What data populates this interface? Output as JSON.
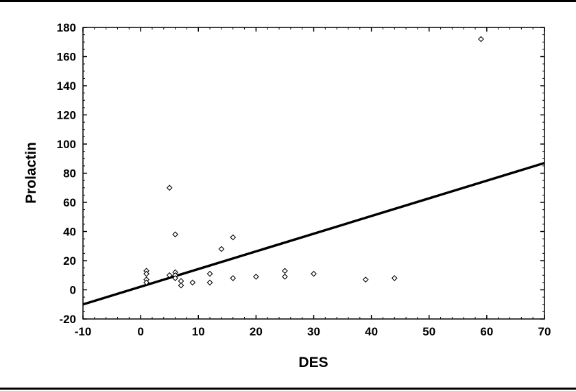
{
  "chart_data": {
    "type": "scatter",
    "title": "",
    "xlabel": "DES",
    "ylabel": "Prolactin",
    "xlim": [
      -10,
      70
    ],
    "ylim": [
      -20,
      180
    ],
    "xticks": [
      -10,
      0,
      10,
      20,
      30,
      40,
      50,
      60,
      70
    ],
    "yticks": [
      -20,
      0,
      20,
      40,
      60,
      80,
      100,
      120,
      140,
      160,
      180
    ],
    "grid": false,
    "legend": "none",
    "marker": "open-diamond",
    "points": [
      {
        "x": 1,
        "y": 13
      },
      {
        "x": 1,
        "y": 11
      },
      {
        "x": 1,
        "y": 7
      },
      {
        "x": 1,
        "y": 5
      },
      {
        "x": 5,
        "y": 70
      },
      {
        "x": 5,
        "y": 10
      },
      {
        "x": 6,
        "y": 38
      },
      {
        "x": 6,
        "y": 12
      },
      {
        "x": 6,
        "y": 10
      },
      {
        "x": 6,
        "y": 8
      },
      {
        "x": 7,
        "y": 6
      },
      {
        "x": 7,
        "y": 3
      },
      {
        "x": 9,
        "y": 5
      },
      {
        "x": 12,
        "y": 11
      },
      {
        "x": 12,
        "y": 5
      },
      {
        "x": 14,
        "y": 28
      },
      {
        "x": 16,
        "y": 36
      },
      {
        "x": 16,
        "y": 8
      },
      {
        "x": 20,
        "y": 9
      },
      {
        "x": 25,
        "y": 13
      },
      {
        "x": 25,
        "y": 9
      },
      {
        "x": 30,
        "y": 11
      },
      {
        "x": 39,
        "y": 7
      },
      {
        "x": 44,
        "y": 8
      },
      {
        "x": 59,
        "y": 172
      }
    ],
    "fit_line": {
      "x": [
        -10,
        70
      ],
      "y": [
        -10,
        87
      ]
    }
  }
}
